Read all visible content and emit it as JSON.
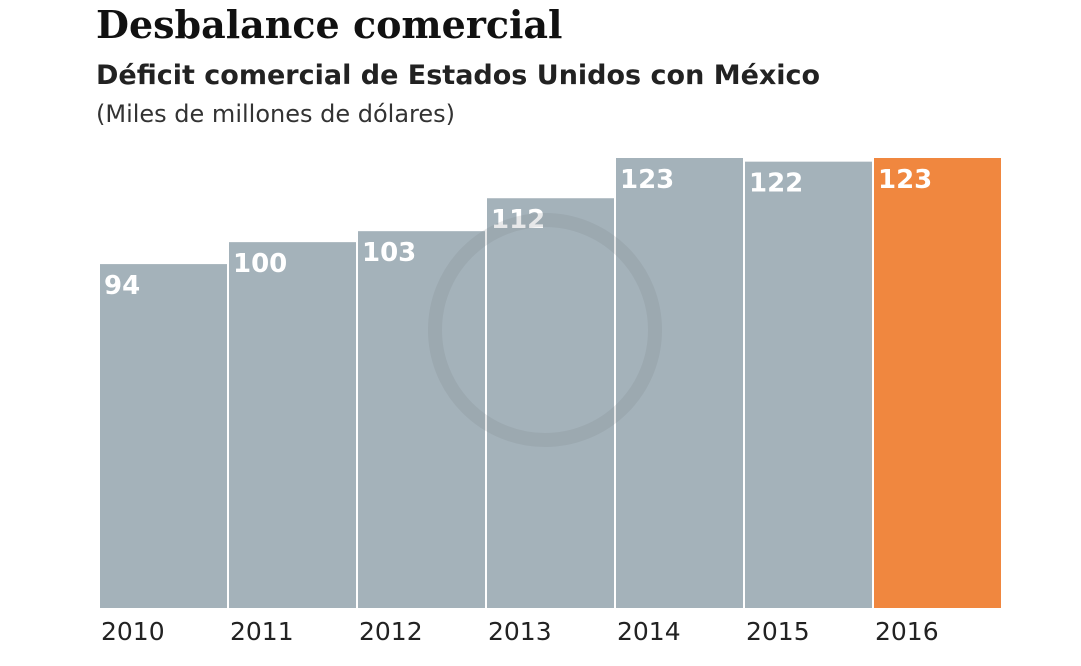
{
  "chart_data": {
    "type": "bar",
    "title": "Desbalance comercial",
    "subtitle": "Déficit comercial de Estados Unidos con México",
    "unit_label": "(Miles de millones de dólares)",
    "categories": [
      "2010",
      "2011",
      "2012",
      "2013",
      "2014",
      "2015",
      "2016"
    ],
    "values": [
      94,
      100,
      103,
      112,
      123,
      122,
      123
    ],
    "ylim": [
      0,
      123
    ],
    "grid": false,
    "colors": {
      "bar": "#a4b2ba",
      "highlight": "#f0873f"
    },
    "highlight_index": 6
  }
}
